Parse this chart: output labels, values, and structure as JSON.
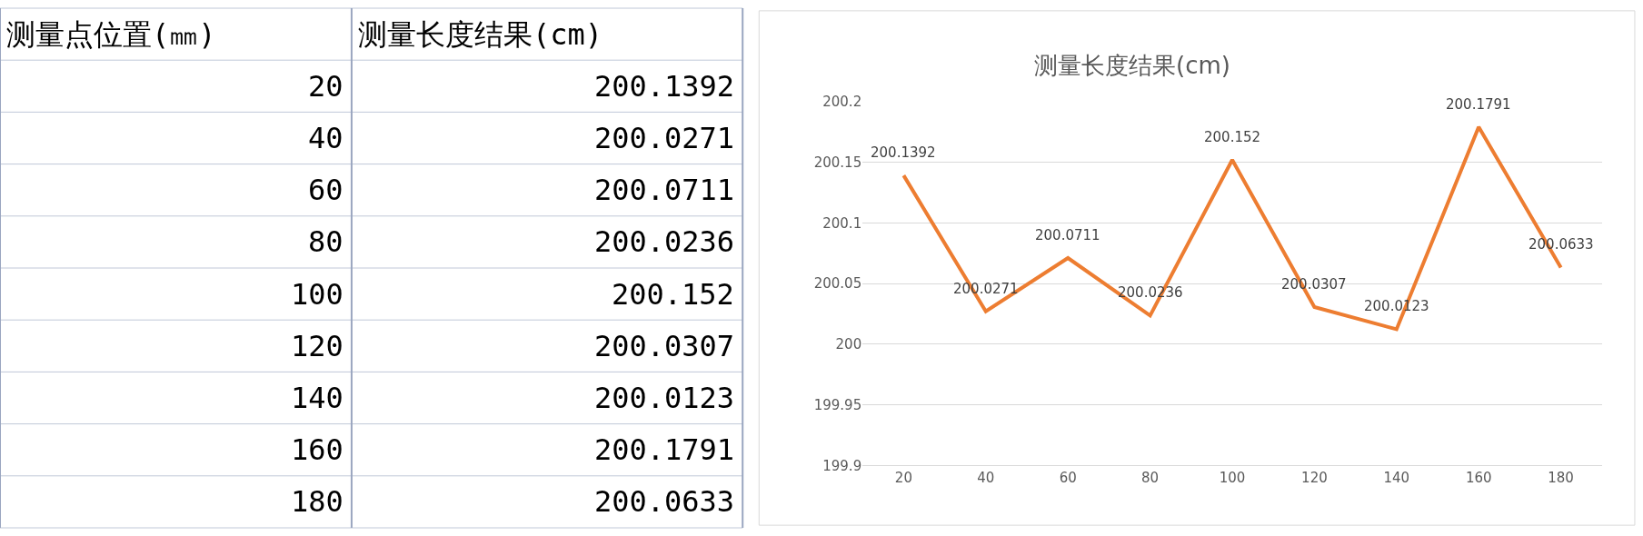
{
  "chart_data": {
    "type": "line",
    "title": "测量长度结果(cm)",
    "annotations": [
      "测量点位置(㎜)",
      "测量长度结果(cm)",
      "20",
      "200.1392",
      "40",
      "200.0271",
      "60",
      "200.0711",
      "80",
      "200.0236",
      "100",
      "200.152",
      "120",
      "200.0307",
      "140",
      "200.0123",
      "160",
      "200.1791",
      "180",
      "200.0633"
    ],
    "categories": [
      "20",
      "40",
      "60",
      "80",
      "100",
      "120",
      "140",
      "160",
      "180"
    ],
    "series": [
      {
        "color": "#ed7d31",
        "values": [
          200.1392,
          200.0271,
          200.0711,
          200.0236,
          200.152,
          200.0307,
          200.0123,
          200.1791,
          200.0633
        ],
        "value_labels": [
          "200.1392",
          "200.0271",
          "200.0711",
          "200.0236",
          "200.152",
          "200.0307",
          "200.0123",
          "200.1791",
          "200.0633"
        ]
      }
    ],
    "ylim": [
      199.9,
      200.2
    ],
    "yticks": [
      199.9,
      199.95,
      200,
      200.05,
      200.1,
      200.15,
      200.2
    ],
    "grid": "y",
    "marker": "none",
    "line_style": "solid"
  }
}
